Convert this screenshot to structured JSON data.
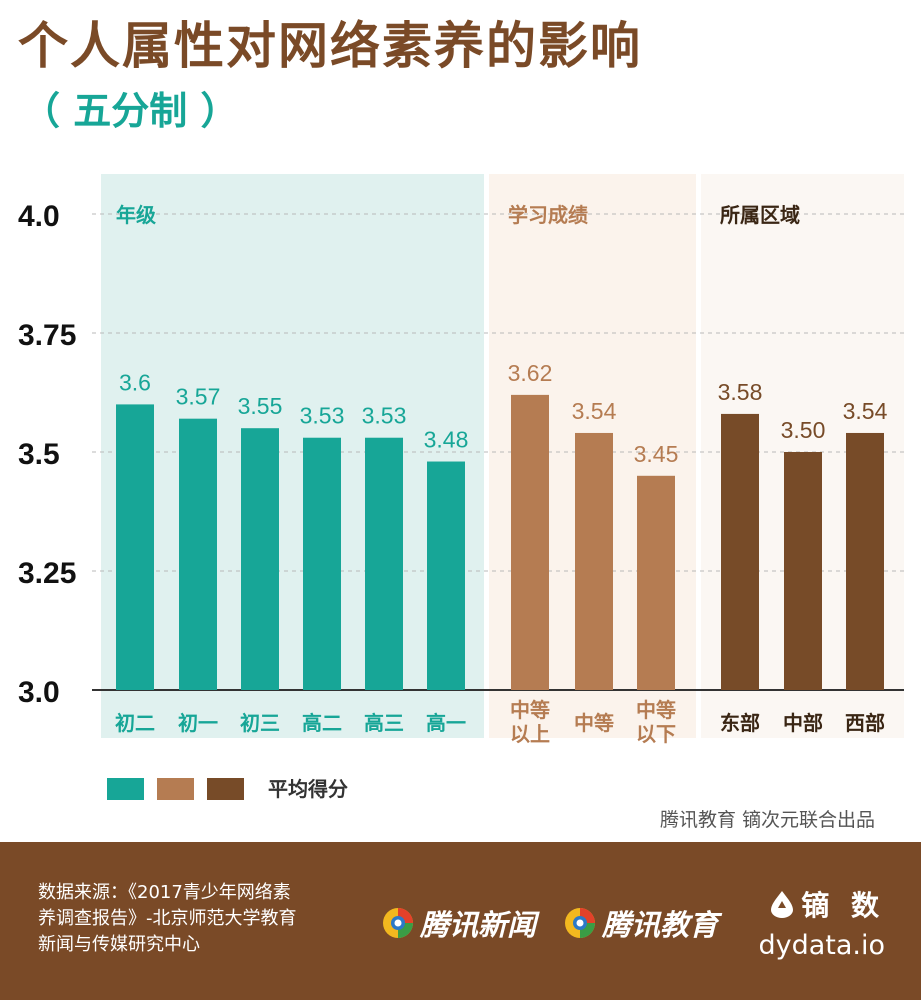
{
  "header": {
    "title": "个人属性对网络素养的影响",
    "subtitle": "（ 五分制 ）"
  },
  "credit": "腾讯教育 镝次元联合出品",
  "footer": {
    "source_lines": [
      "数据来源：《2017青少年网络素",
      "养调查报告》-北京师范大学教育",
      "新闻与传媒研究中心"
    ],
    "brand_news": "腾讯新闻",
    "brand_edu": "腾讯教育",
    "dy_cn": "镝 数",
    "dy_url": "dydata.io"
  },
  "icons": {
    "brand": "tencent-logo-icon",
    "dy": "dydata-logo-icon"
  },
  "colors": {
    "title": "#7a4a27",
    "subtitle": "#17a697",
    "footer_bg": "#7a4a27",
    "teal": "#17a697",
    "tan": "#b57c52",
    "brown": "#774b28",
    "panel_teal_bg": "#e0f1ef",
    "panel_tan_bg": "#fbf3ec",
    "panel_brown_bg": "#fbf7f3"
  },
  "chart_data": {
    "type": "bar",
    "ylim": [
      3.0,
      4.0
    ],
    "yticks": [
      "4.0",
      "3.75",
      "3.5",
      "3.25",
      "3.0"
    ],
    "grid": "dashed",
    "legend": {
      "position": "bottom-left",
      "colors": [
        "#17a697",
        "#b57c52",
        "#774b28"
      ],
      "label": "平均得分"
    },
    "groups": [
      {
        "name": "年级",
        "color": "#17a697",
        "categories": [
          "初二",
          "初一",
          "初三",
          "高二",
          "高三",
          "高一"
        ],
        "values": [
          3.6,
          3.57,
          3.55,
          3.53,
          3.53,
          3.48
        ],
        "labels": [
          "3.6",
          "3.57",
          "3.55",
          "3.53",
          "3.53",
          "3.48"
        ]
      },
      {
        "name": "学习成绩",
        "color": "#b57c52",
        "categories": [
          "中等\n以上",
          "中等",
          "中等\n以下"
        ],
        "values": [
          3.62,
          3.54,
          3.45
        ],
        "labels": [
          "3.62",
          "3.54",
          "3.45"
        ]
      },
      {
        "name": "所属区域",
        "color": "#774b28",
        "categories": [
          "东部",
          "中部",
          "西部"
        ],
        "values": [
          3.58,
          3.5,
          3.54
        ],
        "labels": [
          "3.58",
          "3.50",
          "3.54"
        ]
      }
    ]
  }
}
